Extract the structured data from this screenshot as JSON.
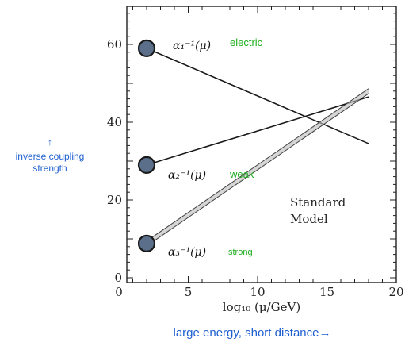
{
  "chart_data": {
    "type": "line",
    "xlabel": "log₁₀ (μ/GeV)",
    "ylabel": "",
    "xlim": [
      0,
      20
    ],
    "ylim": [
      0,
      70
    ],
    "xticks": [
      "0",
      "5",
      "10",
      "15",
      "20"
    ],
    "yticks": [
      "0",
      "20",
      "40",
      "60"
    ],
    "grid": false,
    "series": [
      {
        "name": "α₁⁻¹(μ)",
        "band": false,
        "x": [
          2,
          18
        ],
        "y": [
          59,
          34.5
        ]
      },
      {
        "name": "α₂⁻¹(μ)",
        "band": false,
        "x": [
          2,
          18
        ],
        "y": [
          29,
          46.5
        ]
      },
      {
        "name": "α₃⁻¹(μ)",
        "band": true,
        "x": [
          2,
          18
        ],
        "y": [
          8.8,
          48
        ]
      }
    ],
    "annotations": {
      "electric": "electric",
      "weak": "weak",
      "strong": "strong",
      "model_line1": "Standard",
      "model_line2": "Model"
    },
    "side_label": {
      "arrow": "↑",
      "line1": "inverse coupling",
      "line2": "strength"
    },
    "bottom_caption": "large energy, short distance→",
    "colors": {
      "marker_fill": "#5b6f8a",
      "marker_stroke": "#1a1a1a",
      "green_label": "#1fae1f",
      "blue_label": "#1d5fd0",
      "line": "#1a1a1a"
    }
  }
}
